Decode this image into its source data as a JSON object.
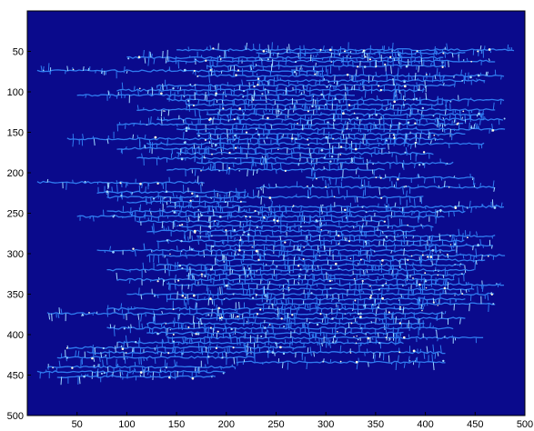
{
  "chart_data": {
    "type": "scatter",
    "title": "",
    "xlabel": "",
    "ylabel": "",
    "xlim": [
      0,
      500
    ],
    "ylim": [
      0,
      500
    ],
    "y_reversed": true,
    "grid": false,
    "xticks": [
      "50",
      "100",
      "150",
      "200",
      "250",
      "300",
      "350",
      "400",
      "450",
      "500"
    ],
    "yticks": [
      "50",
      "100",
      "150",
      "200",
      "250",
      "300",
      "350",
      "400",
      "450",
      "500"
    ],
    "series": [
      {
        "values": "dense field of short horizontal branching strokes"
      }
    ],
    "colors": {
      "background": "#0a0a8c",
      "trace": "#2f7cf0",
      "highlight": "#9fd8ff",
      "spark": "#fffbe0"
    }
  }
}
